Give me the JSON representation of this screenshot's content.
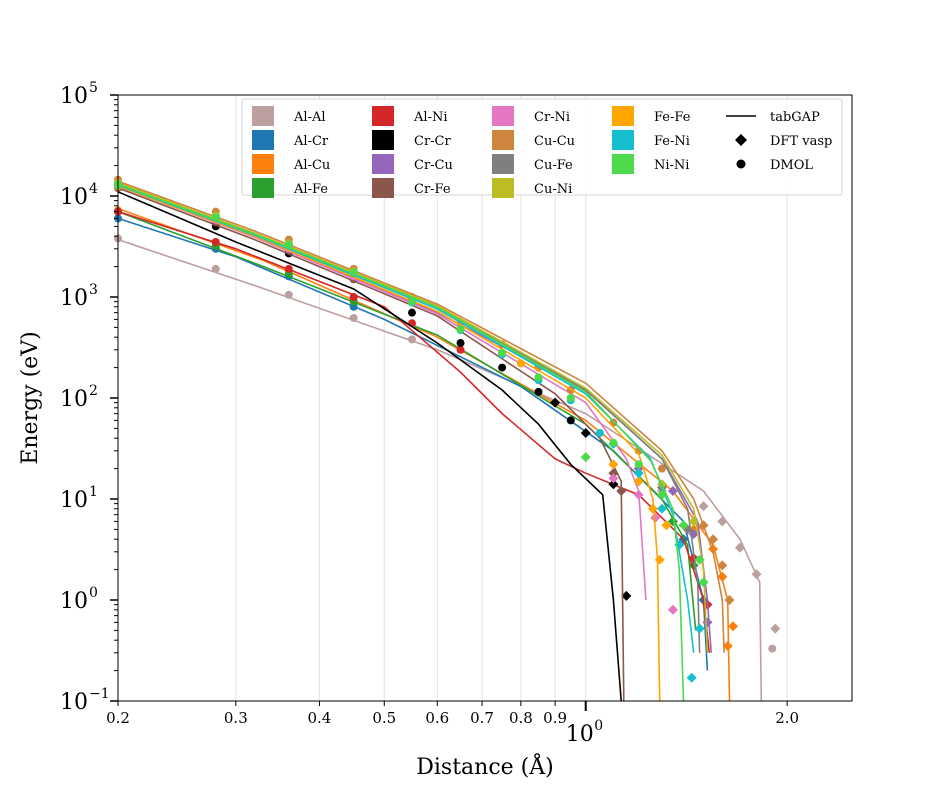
{
  "chart_data": {
    "type": "line",
    "title": "",
    "xlabel": "Distance (Å)",
    "ylabel": "Energy (eV)",
    "xscale": "log",
    "yscale": "log",
    "xlim": [
      0.2,
      2.5
    ],
    "ylim": [
      0.1,
      100000
    ],
    "x_ticks": [
      {
        "value": 0.2,
        "label": "0.2"
      },
      {
        "value": 0.3,
        "label": "0.3"
      },
      {
        "value": 0.4,
        "label": "0.4"
      },
      {
        "value": 0.5,
        "label": "0.5"
      },
      {
        "value": 0.6,
        "label": "0.6"
      },
      {
        "value": 0.7,
        "label": "0.7"
      },
      {
        "value": 0.8,
        "label": "0.8"
      },
      {
        "value": 0.9,
        "label": "0.9"
      },
      {
        "value": 2.0,
        "label": "2.0"
      }
    ],
    "x_major_tick": {
      "base": "10",
      "exp": "0"
    },
    "y_ticks": [
      {
        "exp": "−1",
        "value": 0.1
      },
      {
        "exp": "0",
        "value": 1
      },
      {
        "exp": "1",
        "value": 10
      },
      {
        "exp": "2",
        "value": 100
      },
      {
        "exp": "3",
        "value": 1000
      },
      {
        "exp": "4",
        "value": 10000
      },
      {
        "exp": "5",
        "value": 100000
      }
    ],
    "legend": {
      "position": "top-right",
      "marker_entries": [
        {
          "label": "tabGAP",
          "style": "line"
        },
        {
          "label": "DFT vasp",
          "style": "diamond"
        },
        {
          "label": "DMOL",
          "style": "circle"
        }
      ]
    },
    "series": [
      {
        "name": "Al-Al",
        "color": "#bca0a0",
        "gap": [
          [
            0.2,
            3700
          ],
          [
            0.32,
            1300
          ],
          [
            0.6,
            300
          ],
          [
            1.0,
            70
          ],
          [
            1.5,
            12
          ],
          [
            1.7,
            4
          ],
          [
            1.82,
            1.5
          ],
          [
            1.83,
            0.1
          ]
        ],
        "dmol": [
          [
            0.2,
            3800
          ],
          [
            0.28,
            1900
          ],
          [
            0.36,
            1050
          ],
          [
            0.45,
            620
          ],
          [
            0.55,
            380
          ],
          [
            1.9,
            0.33
          ]
        ],
        "vasp": [
          [
            1.3,
            12
          ],
          [
            1.5,
            8.5
          ],
          [
            1.6,
            6
          ],
          [
            1.7,
            3.3
          ],
          [
            1.8,
            1.8
          ],
          [
            1.92,
            0.52
          ]
        ]
      },
      {
        "name": "Al-Cr",
        "color": "#1f77b4",
        "gap": [
          [
            0.2,
            6000
          ],
          [
            0.3,
            2500
          ],
          [
            0.5,
            600
          ],
          [
            0.8,
            130
          ],
          [
            1.1,
            30
          ],
          [
            1.4,
            6
          ],
          [
            1.5,
            1
          ],
          [
            1.52,
            0.2
          ]
        ],
        "dmol": [
          [
            0.2,
            6000
          ],
          [
            0.28,
            3000
          ],
          [
            0.36,
            1600
          ],
          [
            0.45,
            800
          ]
        ],
        "vasp": [
          [
            1.2,
            15
          ],
          [
            1.4,
            4
          ],
          [
            1.5,
            1
          ]
        ]
      },
      {
        "name": "Al-Cu",
        "color": "#ff7f0e",
        "gap": [
          [
            0.2,
            7500
          ],
          [
            0.33,
            2300
          ],
          [
            0.6,
            400
          ],
          [
            1.0,
            60
          ],
          [
            1.35,
            12
          ],
          [
            1.55,
            3.5
          ],
          [
            1.63,
            1
          ],
          [
            1.64,
            0.1
          ]
        ],
        "dmol": [
          [
            0.2,
            7200
          ],
          [
            0.28,
            3500
          ],
          [
            0.36,
            1800
          ],
          [
            0.45,
            950
          ]
        ],
        "vasp": [
          [
            1.45,
            5
          ],
          [
            1.55,
            3.2
          ],
          [
            1.6,
            1.7
          ],
          [
            1.63,
            0.35
          ],
          [
            1.66,
            0.55
          ]
        ]
      },
      {
        "name": "Al-Fe",
        "color": "#2ca02c",
        "gap": [
          [
            0.2,
            7000
          ],
          [
            0.33,
            2000
          ],
          [
            0.6,
            420
          ],
          [
            1.0,
            55
          ],
          [
            1.3,
            10
          ],
          [
            1.42,
            3.5
          ],
          [
            1.46,
            0.5
          ]
        ],
        "dmol": [
          [
            0.2,
            7000
          ],
          [
            0.28,
            3200
          ],
          [
            0.36,
            1700
          ],
          [
            0.45,
            900
          ]
        ],
        "vasp": [
          [
            1.35,
            6
          ],
          [
            1.45,
            2.2
          ]
        ]
      },
      {
        "name": "Al-Ni",
        "color": "#d62728",
        "gap": [
          [
            0.2,
            7000
          ],
          [
            0.3,
            3000
          ],
          [
            0.5,
            800
          ],
          [
            0.65,
            180
          ],
          [
            0.75,
            70
          ],
          [
            0.9,
            25
          ],
          [
            1.0,
            18
          ],
          [
            1.2,
            11
          ],
          [
            1.4,
            4
          ],
          [
            1.5,
            1
          ],
          [
            1.53,
            0.3
          ]
        ],
        "dmol": [
          [
            0.2,
            7000
          ],
          [
            0.28,
            3500
          ],
          [
            0.36,
            1900
          ],
          [
            0.45,
            1000
          ],
          [
            0.55,
            550
          ],
          [
            0.65,
            300
          ]
        ],
        "vasp": [
          [
            1.45,
            2.6
          ],
          [
            1.52,
            0.9
          ]
        ]
      },
      {
        "name": "Cr-Cr",
        "color": "#000000",
        "gap": [
          [
            0.2,
            11000
          ],
          [
            0.3,
            3500
          ],
          [
            0.45,
            1200
          ],
          [
            0.6,
            350
          ],
          [
            0.75,
            120
          ],
          [
            0.85,
            55
          ],
          [
            0.95,
            22
          ],
          [
            1.06,
            11
          ],
          [
            1.1,
            1
          ],
          [
            1.13,
            0.1
          ]
        ],
        "dmol": [
          [
            0.28,
            5000
          ],
          [
            0.36,
            2700
          ],
          [
            0.45,
            1500
          ],
          [
            0.55,
            700
          ],
          [
            0.65,
            350
          ],
          [
            0.75,
            200
          ],
          [
            0.85,
            115
          ],
          [
            0.95,
            60
          ]
        ],
        "vasp": [
          [
            0.9,
            90
          ],
          [
            1.0,
            45
          ],
          [
            1.1,
            14
          ],
          [
            1.15,
            1.1
          ]
        ]
      },
      {
        "name": "Cr-Cu",
        "color": "#9467bd",
        "gap": [
          [
            0.2,
            13000
          ],
          [
            0.32,
            4000
          ],
          [
            0.6,
            700
          ],
          [
            1.0,
            120
          ],
          [
            1.3,
            25
          ],
          [
            1.47,
            6
          ],
          [
            1.52,
            1
          ],
          [
            1.54,
            0.3
          ]
        ],
        "dmol": [
          [
            0.2,
            13000
          ],
          [
            0.28,
            6000
          ],
          [
            0.36,
            3200
          ],
          [
            0.45,
            1700
          ]
        ],
        "vasp": [
          [
            1.2,
            20
          ],
          [
            1.35,
            12
          ],
          [
            1.45,
            4.5
          ],
          [
            1.52,
            0.6
          ]
        ]
      },
      {
        "name": "Cr-Fe",
        "color": "#8c564b",
        "gap": [
          [
            0.2,
            12000
          ],
          [
            0.32,
            3700
          ],
          [
            0.6,
            650
          ],
          [
            0.9,
            110
          ],
          [
            1.05,
            40
          ],
          [
            1.13,
            15
          ],
          [
            1.14,
            0.1
          ]
        ],
        "dmol": [
          [
            0.2,
            12000
          ],
          [
            0.28,
            5500
          ],
          [
            0.36,
            2900
          ],
          [
            0.45,
            1500
          ]
        ],
        "vasp": [
          [
            1.1,
            18
          ],
          [
            1.13,
            12
          ]
        ]
      },
      {
        "name": "Cr-Ni",
        "color": "#e377c2",
        "gap": [
          [
            0.2,
            12500
          ],
          [
            0.32,
            3900
          ],
          [
            0.6,
            680
          ],
          [
            1.0,
            90
          ],
          [
            1.15,
            25
          ],
          [
            1.2,
            12
          ],
          [
            1.23,
            1
          ]
        ],
        "dmol": [
          [
            0.2,
            12500
          ],
          [
            0.28,
            5800
          ],
          [
            0.36,
            3000
          ],
          [
            0.45,
            1600
          ]
        ],
        "vasp": [
          [
            1.1,
            16
          ],
          [
            1.2,
            11
          ],
          [
            1.27,
            6.5
          ],
          [
            1.35,
            0.8
          ]
        ]
      },
      {
        "name": "Cu-Cu",
        "color": "#cd853f",
        "gap": [
          [
            0.2,
            14000
          ],
          [
            0.32,
            4500
          ],
          [
            0.6,
            850
          ],
          [
            1.0,
            140
          ],
          [
            1.3,
            30
          ],
          [
            1.45,
            10
          ],
          [
            1.55,
            3
          ],
          [
            1.6,
            1
          ],
          [
            1.61,
            0.3
          ]
        ],
        "dmol": [
          [
            0.2,
            14500
          ],
          [
            0.28,
            7000
          ],
          [
            0.36,
            3700
          ],
          [
            0.45,
            1900
          ],
          [
            0.55,
            1000
          ],
          [
            0.65,
            560
          ],
          [
            0.75,
            340
          ],
          [
            0.85,
            200
          ],
          [
            0.95,
            120
          ],
          [
            1.1,
            57
          ],
          [
            1.2,
            30
          ],
          [
            1.3,
            20
          ]
        ],
        "vasp": [
          [
            1.5,
            5.5
          ],
          [
            1.55,
            4
          ],
          [
            1.6,
            2.2
          ],
          [
            1.64,
            1
          ]
        ]
      },
      {
        "name": "Cu-Fe",
        "color": "#7f7f7f",
        "gap": [
          [
            0.2,
            13000
          ],
          [
            0.32,
            4200
          ],
          [
            0.6,
            800
          ],
          [
            1.0,
            120
          ],
          [
            1.3,
            25
          ],
          [
            1.42,
            8
          ],
          [
            1.47,
            1.5
          ],
          [
            1.48,
            0.3
          ]
        ],
        "dmol": [
          [
            0.2,
            13000
          ],
          [
            0.28,
            6200
          ],
          [
            0.36,
            3300
          ],
          [
            0.45,
            1750
          ]
        ],
        "vasp": [
          [
            1.3,
            13
          ],
          [
            1.42,
            5
          ]
        ]
      },
      {
        "name": "Cu-Ni",
        "color": "#bcbd22",
        "gap": [
          [
            0.2,
            13500
          ],
          [
            0.32,
            4300
          ],
          [
            0.6,
            820
          ],
          [
            1.0,
            125
          ],
          [
            1.3,
            27
          ],
          [
            1.45,
            8
          ],
          [
            1.5,
            2
          ],
          [
            1.52,
            0.3
          ]
        ],
        "dmol": [
          [
            0.2,
            13500
          ],
          [
            0.28,
            6400
          ],
          [
            0.36,
            3400
          ],
          [
            0.45,
            1800
          ]
        ],
        "vasp": [
          [
            1.3,
            14
          ],
          [
            1.45,
            6
          ]
        ]
      },
      {
        "name": "Fe-Fe",
        "color": "#ffa500",
        "gap": [
          [
            0.2,
            12500
          ],
          [
            0.32,
            4000
          ],
          [
            0.6,
            720
          ],
          [
            1.0,
            100
          ],
          [
            1.2,
            28
          ],
          [
            1.26,
            10
          ],
          [
            1.28,
            2.5
          ],
          [
            1.29,
            0.1
          ]
        ],
        "dmol": [
          [
            0.2,
            12500
          ],
          [
            0.28,
            6000
          ],
          [
            0.36,
            3200
          ],
          [
            0.45,
            1700
          ],
          [
            0.55,
            900
          ],
          [
            0.65,
            480
          ],
          [
            0.75,
            280
          ],
          [
            0.8,
            220
          ],
          [
            0.85,
            160
          ],
          [
            0.95,
            100
          ]
        ],
        "vasp": [
          [
            1.1,
            22
          ],
          [
            1.2,
            15
          ],
          [
            1.26,
            8
          ],
          [
            1.29,
            2.5
          ],
          [
            1.32,
            5.5
          ]
        ]
      },
      {
        "name": "Fe-Ni",
        "color": "#17becf",
        "gap": [
          [
            0.2,
            12800
          ],
          [
            0.32,
            4100
          ],
          [
            0.6,
            760
          ],
          [
            1.0,
            110
          ],
          [
            1.25,
            25
          ],
          [
            1.35,
            7
          ],
          [
            1.42,
            1
          ],
          [
            1.45,
            0.3
          ]
        ],
        "dmol": [
          [
            0.2,
            12800
          ],
          [
            0.28,
            6100
          ],
          [
            0.36,
            3250
          ],
          [
            0.45,
            1720
          ],
          [
            0.55,
            880
          ],
          [
            0.65,
            470
          ],
          [
            0.75,
            270
          ],
          [
            0.85,
            150
          ],
          [
            0.95,
            95
          ],
          [
            1.05,
            45
          ]
        ],
        "vasp": [
          [
            1.1,
            35
          ],
          [
            1.2,
            18
          ],
          [
            1.3,
            8
          ],
          [
            1.38,
            3.5
          ],
          [
            1.44,
            0.17
          ],
          [
            1.48,
            0.52
          ]
        ]
      },
      {
        "name": "Ni-Ni",
        "color": "#4cd94c",
        "gap": [
          [
            0.2,
            13000
          ],
          [
            0.32,
            4200
          ],
          [
            0.6,
            790
          ],
          [
            1.0,
            115
          ],
          [
            1.25,
            24
          ],
          [
            1.35,
            8
          ],
          [
            1.38,
            2
          ],
          [
            1.4,
            0.1
          ]
        ],
        "dmol": [
          [
            0.2,
            13000
          ],
          [
            0.28,
            6200
          ],
          [
            0.36,
            3300
          ],
          [
            0.45,
            1750
          ],
          [
            0.55,
            900
          ],
          [
            0.65,
            480
          ],
          [
            0.75,
            280
          ],
          [
            0.85,
            160
          ],
          [
            0.95,
            100
          ],
          [
            1.1,
            36
          ],
          [
            1.2,
            22
          ]
        ],
        "vasp": [
          [
            1.0,
            26
          ],
          [
            1.3,
            11
          ],
          [
            1.4,
            5.5
          ],
          [
            1.48,
            2.5
          ],
          [
            1.5,
            1.5
          ]
        ]
      }
    ]
  }
}
